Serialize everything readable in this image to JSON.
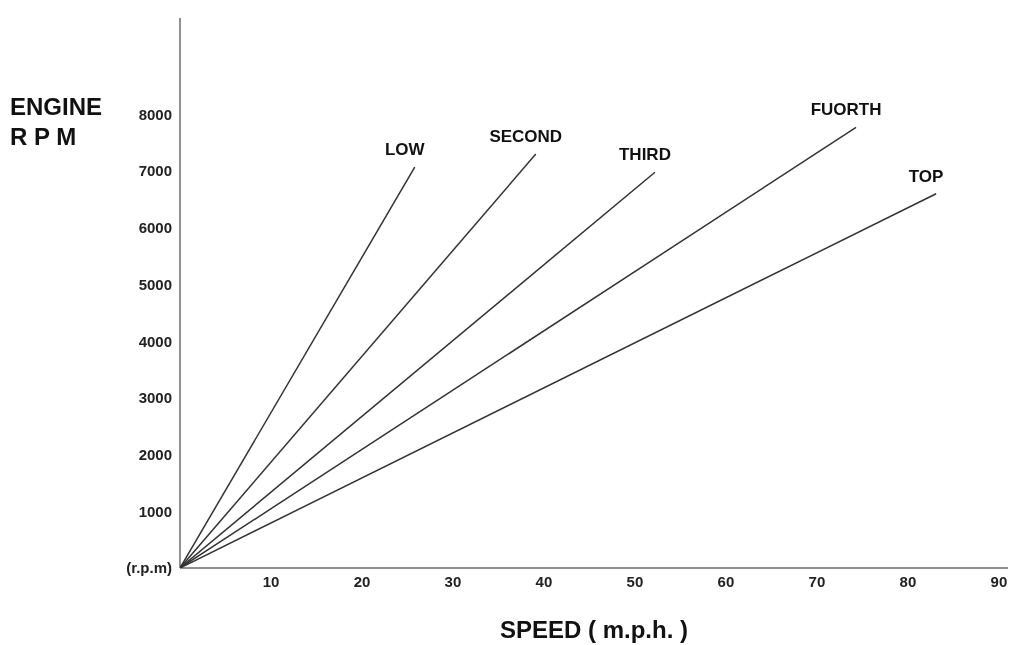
{
  "chart_data": {
    "type": "line",
    "xlabel": "SPEED  ( m.p.h. )",
    "ylabel": "ENGINE\nR P M",
    "xlim": [
      0,
      91
    ],
    "ylim": [
      0,
      9700
    ],
    "xticks": [
      10,
      20,
      30,
      40,
      50,
      60,
      70,
      80,
      90
    ],
    "yticks": [
      {
        "value": 0,
        "label": "(r.p.m)"
      },
      1000,
      2000,
      3000,
      4000,
      5000,
      6000,
      7000,
      8000
    ],
    "grid": false,
    "legend": false,
    "marker": "none",
    "line_style": "solid",
    "series": [
      {
        "name": "LOW",
        "color": "#333333",
        "x": [
          0,
          25.8
        ],
        "values": [
          0,
          7070
        ]
      },
      {
        "name": "SECOND",
        "color": "#333333",
        "x": [
          0,
          39.1
        ],
        "values": [
          0,
          7300
        ]
      },
      {
        "name": "THIRD",
        "color": "#333333",
        "x": [
          0,
          52.2
        ],
        "values": [
          0,
          6980
        ]
      },
      {
        "name": "FUORTH",
        "color": "#333333",
        "x": [
          0,
          74.3
        ],
        "values": [
          0,
          7770
        ]
      },
      {
        "name": "TOP",
        "color": "#333333",
        "x": [
          0,
          83.1
        ],
        "values": [
          0,
          6600
        ]
      }
    ]
  }
}
